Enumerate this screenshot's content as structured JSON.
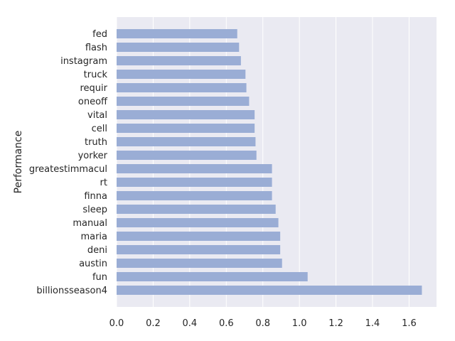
{
  "chart_data": {
    "type": "bar",
    "orientation": "horizontal",
    "ylabel": "Performance",
    "xlabel": "",
    "xlim": [
      0.0,
      1.75
    ],
    "xticks": [
      0.0,
      0.2,
      0.4,
      0.6,
      0.8,
      1.0,
      1.2,
      1.4,
      1.6
    ],
    "xtick_labels": [
      "0.0",
      "0.2",
      "0.4",
      "0.6",
      "0.8",
      "1.0",
      "1.2",
      "1.4",
      "1.6"
    ],
    "grid": true,
    "bar_color": "#9aadd5",
    "background_color": "#eaeaf2",
    "categories": [
      "billionsseason4",
      "fun",
      "austin",
      "deni",
      "maria",
      "manual",
      "sleep",
      "finna",
      "rt",
      "greatestimmacul",
      "yorker",
      "truth",
      "cell",
      "vital",
      "oneoff",
      "requir",
      "truck",
      "instagram",
      "flash",
      "fed"
    ],
    "values": [
      1.67,
      1.045,
      0.905,
      0.895,
      0.895,
      0.885,
      0.87,
      0.85,
      0.85,
      0.85,
      0.765,
      0.76,
      0.755,
      0.755,
      0.725,
      0.71,
      0.705,
      0.68,
      0.67,
      0.66
    ]
  }
}
